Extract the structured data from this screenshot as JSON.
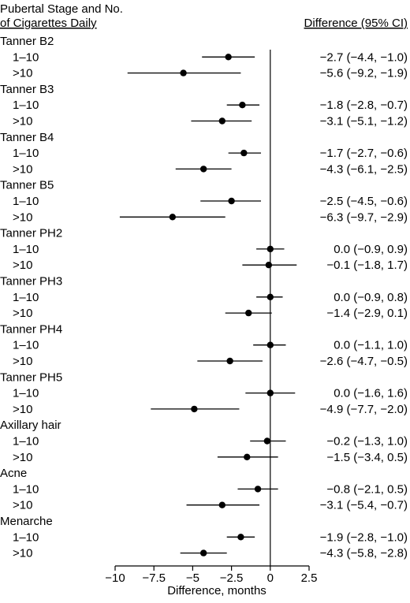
{
  "chart_data": {
    "type": "forest",
    "header_left_line1": "Pubertal Stage and No.",
    "header_left_line2": "of Cigarettes Daily",
    "header_right": "Difference (95% CI)",
    "xlabel": "Difference, months",
    "xlim": [
      -10,
      2.5
    ],
    "xticks": [
      -10,
      -7.5,
      -5,
      -2.5,
      0,
      2.5
    ],
    "xtick_labels": [
      "−10",
      "−7.5",
      "−5",
      "−2.5",
      "0",
      "2.5"
    ],
    "reference_line": 0,
    "groups": [
      {
        "name": "Tanner B2",
        "rows": [
          {
            "label": "1–10",
            "est": -2.7,
            "lo": -4.4,
            "hi": -1.0,
            "text": "−2.7 (−4.4, −1.0)"
          },
          {
            "label": ">10",
            "est": -5.6,
            "lo": -9.2,
            "hi": -1.9,
            "text": "−5.6 (−9.2, −1.9)"
          }
        ]
      },
      {
        "name": "Tanner B3",
        "rows": [
          {
            "label": "1–10",
            "est": -1.8,
            "lo": -2.8,
            "hi": -0.7,
            "text": "−1.8 (−2.8, −0.7)"
          },
          {
            "label": ">10",
            "est": -3.1,
            "lo": -5.1,
            "hi": -1.2,
            "text": "−3.1 (−5.1, −1.2)"
          }
        ]
      },
      {
        "name": "Tanner B4",
        "rows": [
          {
            "label": "1–10",
            "est": -1.7,
            "lo": -2.7,
            "hi": -0.6,
            "text": "−1.7 (−2.7, −0.6)"
          },
          {
            "label": ">10",
            "est": -4.3,
            "lo": -6.1,
            "hi": -2.5,
            "text": "−4.3 (−6.1, −2.5)"
          }
        ]
      },
      {
        "name": "Tanner B5",
        "rows": [
          {
            "label": "1–10",
            "est": -2.5,
            "lo": -4.5,
            "hi": -0.6,
            "text": "−2.5 (−4.5, −0.6)"
          },
          {
            "label": ">10",
            "est": -6.3,
            "lo": -9.7,
            "hi": -2.9,
            "text": "−6.3 (−9.7, −2.9)"
          }
        ]
      },
      {
        "name": "Tanner PH2",
        "rows": [
          {
            "label": "1–10",
            "est": 0.0,
            "lo": -0.9,
            "hi": 0.9,
            "text": "0.0 (−0.9, 0.9)"
          },
          {
            "label": ">10",
            "est": -0.1,
            "lo": -1.8,
            "hi": 1.7,
            "text": "−0.1 (−1.8, 1.7)"
          }
        ]
      },
      {
        "name": "Tanner PH3",
        "rows": [
          {
            "label": "1–10",
            "est": 0.0,
            "lo": -0.9,
            "hi": 0.8,
            "text": "0.0 (−0.9, 0.8)"
          },
          {
            "label": ">10",
            "est": -1.4,
            "lo": -2.9,
            "hi": 0.1,
            "text": "−1.4 (−2.9, 0.1)"
          }
        ]
      },
      {
        "name": "Tanner PH4",
        "rows": [
          {
            "label": "1–10",
            "est": 0.0,
            "lo": -1.1,
            "hi": 1.0,
            "text": "0.0 (−1.1, 1.0)"
          },
          {
            "label": ">10",
            "est": -2.6,
            "lo": -4.7,
            "hi": -0.5,
            "text": "−2.6 (−4.7, −0.5)"
          }
        ]
      },
      {
        "name": "Tanner PH5",
        "rows": [
          {
            "label": "1–10",
            "est": 0.0,
            "lo": -1.6,
            "hi": 1.6,
            "text": "0.0 (−1.6, 1.6)"
          },
          {
            "label": ">10",
            "est": -4.9,
            "lo": -7.7,
            "hi": -2.0,
            "text": "−4.9 (−7.7, −2.0)"
          }
        ]
      },
      {
        "name": "Axillary hair",
        "rows": [
          {
            "label": "1–10",
            "est": -0.2,
            "lo": -1.3,
            "hi": 1.0,
            "text": "−0.2 (−1.3, 1.0)"
          },
          {
            "label": ">10",
            "est": -1.5,
            "lo": -3.4,
            "hi": 0.5,
            "text": "−1.5 (−3.4, 0.5)"
          }
        ]
      },
      {
        "name": "Acne",
        "rows": [
          {
            "label": "1–10",
            "est": -0.8,
            "lo": -2.1,
            "hi": 0.5,
            "text": "−0.8 (−2.1, 0.5)"
          },
          {
            "label": ">10",
            "est": -3.1,
            "lo": -5.4,
            "hi": -0.7,
            "text": "−3.1 (−5.4, −0.7)"
          }
        ]
      },
      {
        "name": "Menarche",
        "rows": [
          {
            "label": "1–10",
            "est": -1.9,
            "lo": -2.8,
            "hi": -1.0,
            "text": "−1.9 (−2.8, −1.0)"
          },
          {
            "label": ">10",
            "est": -4.3,
            "lo": -5.8,
            "hi": -2.8,
            "text": "−4.3 (−5.8, −2.8)"
          }
        ]
      }
    ]
  }
}
